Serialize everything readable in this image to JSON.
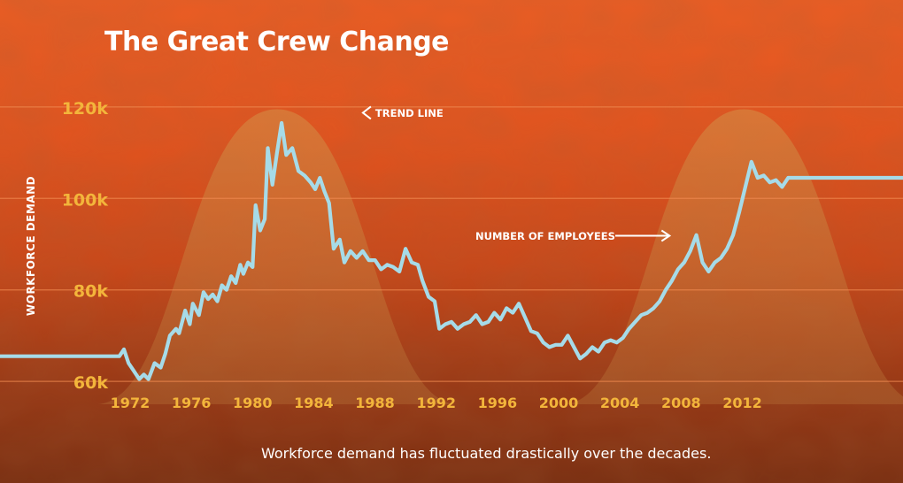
{
  "chart_data": {
    "type": "line",
    "title": "The Great Crew Change",
    "ylabel": "WORKFORCE DEMAND",
    "caption": "Workforce demand has fluctuated drastically over the decades.",
    "x_ticks": [
      "1972",
      "1976",
      "1980",
      "1984",
      "1988",
      "1992",
      "1996",
      "2000",
      "2004",
      "2008",
      "2012"
    ],
    "y_ticks": [
      {
        "value": 60000,
        "label": "60k"
      },
      {
        "value": 80000,
        "label": "80k"
      },
      {
        "value": 100000,
        "label": "100k"
      },
      {
        "value": 120000,
        "label": "120k"
      }
    ],
    "xlim": [
      1963.5,
      2022.5
    ],
    "ylim": [
      55000,
      125000
    ],
    "grid": true,
    "series": [
      {
        "name": "NUMBER OF EMPLOYEES",
        "color": "#a6dbe8",
        "x": [
          1963.5,
          1971.3,
          1971.6,
          1971.9,
          1972.2,
          1972.6,
          1972.9,
          1973.2,
          1973.6,
          1974.0,
          1974.3,
          1974.6,
          1975.0,
          1975.2,
          1975.6,
          1975.9,
          1976.1,
          1976.5,
          1976.8,
          1977.1,
          1977.4,
          1977.7,
          1978.0,
          1978.3,
          1978.6,
          1978.9,
          1979.2,
          1979.4,
          1979.7,
          1980.0,
          1980.2,
          1980.5,
          1980.8,
          1981.0,
          1981.3,
          1981.6,
          1981.9,
          1982.2,
          1982.6,
          1983.0,
          1983.4,
          1983.8,
          1984.1,
          1984.4,
          1984.7,
          1985.0,
          1985.3,
          1985.7,
          1986.0,
          1986.4,
          1986.8,
          1987.2,
          1987.6,
          1988.0,
          1988.4,
          1988.8,
          1989.2,
          1989.6,
          1990.0,
          1990.4,
          1990.8,
          1991.1,
          1991.5,
          1991.9,
          1992.2,
          1992.6,
          1993.0,
          1993.4,
          1993.8,
          1994.2,
          1994.6,
          1995.0,
          1995.4,
          1995.8,
          1996.2,
          1996.6,
          1997.0,
          1997.4,
          1997.8,
          1998.2,
          1998.6,
          1999.0,
          1999.4,
          1999.8,
          2000.2,
          2000.6,
          2001.0,
          2001.4,
          2001.8,
          2002.2,
          2002.6,
          2003.0,
          2003.4,
          2003.8,
          2004.2,
          2004.6,
          2005.0,
          2005.4,
          2005.8,
          2006.2,
          2006.6,
          2007.0,
          2007.4,
          2007.8,
          2008.2,
          2008.6,
          2009.0,
          2009.4,
          2009.8,
          2010.2,
          2010.6,
          2011.0,
          2011.4,
          2011.8,
          2012.2,
          2012.6,
          2013.0,
          2013.4,
          2013.8,
          2014.2,
          2014.6,
          2015.0,
          2022.5
        ],
        "y": [
          65500,
          65500,
          67000,
          64000,
          62500,
          60500,
          61500,
          60500,
          64000,
          63000,
          66000,
          70000,
          71500,
          70500,
          75500,
          72500,
          77000,
          74500,
          79500,
          78000,
          79000,
          77500,
          81000,
          80000,
          83000,
          81500,
          85500,
          83500,
          86000,
          85000,
          98500,
          93000,
          95500,
          111000,
          103000,
          110000,
          116500,
          109500,
          111000,
          106000,
          105000,
          103500,
          102000,
          104500,
          101500,
          99000,
          89000,
          91000,
          86000,
          88500,
          87000,
          88500,
          86500,
          86500,
          84500,
          85500,
          85000,
          84000,
          89000,
          86000,
          85500,
          82000,
          78500,
          77500,
          71500,
          72500,
          73000,
          71500,
          72500,
          73000,
          74500,
          72500,
          73000,
          75000,
          73500,
          76000,
          75000,
          77000,
          74000,
          71000,
          70500,
          68500,
          67500,
          68000,
          68000,
          70000,
          67500,
          65000,
          66000,
          67500,
          66500,
          68500,
          69000,
          68500,
          69500,
          71500,
          73000,
          74500,
          75000,
          76000,
          77500,
          80000,
          82000,
          84500,
          86000,
          88500,
          92000,
          86000,
          84000,
          86000,
          87000,
          89000,
          92000,
          97000,
          102500,
          108000,
          104500,
          105000,
          103500,
          104000,
          102500,
          104500,
          104500
        ]
      }
    ],
    "annotations": [
      {
        "text": "TREND LINE",
        "x": 1981.6,
        "y": 119500,
        "arrow": "left"
      },
      {
        "text": "NUMBER OF EMPLOYEES",
        "x": 2008.0,
        "y": 93000,
        "arrow": "right"
      }
    ],
    "trend_line": {
      "color": "#cf8a3e",
      "peaks": [
        {
          "x": 1981.6,
          "ymax": 119500
        },
        {
          "x": 2012.1,
          "ymax": 119500
        }
      ],
      "base_y": 55000,
      "note": "bell-shaped shaded trend band"
    },
    "colors": {
      "tick": "#f3b53b",
      "grid": "#f08a50",
      "text": "#ffffff",
      "arrow": "#ffffff"
    }
  }
}
